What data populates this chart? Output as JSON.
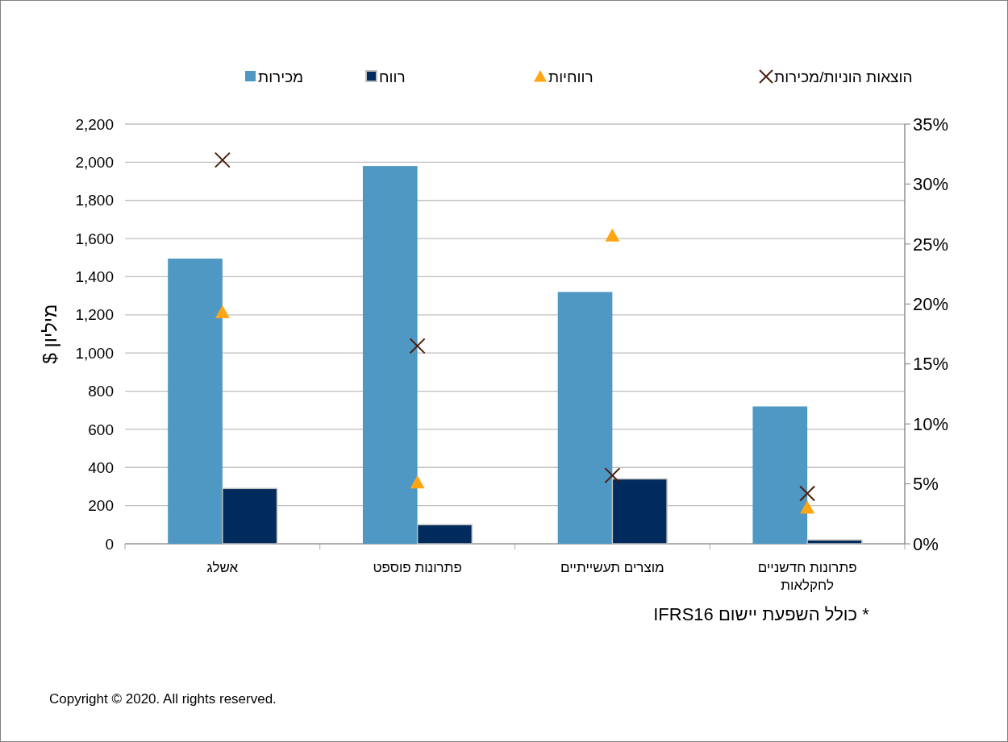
{
  "chart_data": {
    "type": "bar",
    "ylabel": "מיליון $",
    "categories": [
      "אשלג",
      "פתרונות פוספט",
      "מוצרים תעשייתיים",
      "פתרונות חדשניים לחקלאות"
    ],
    "series": [
      {
        "name": "מכירות",
        "color": "#4f98c3",
        "values": [
          1495,
          1980,
          1320,
          720
        ]
      },
      {
        "name": "רווח",
        "color": "#002b5c",
        "values": [
          290,
          100,
          340,
          20
        ]
      },
      {
        "name": "רווחיות",
        "type": "scatter",
        "marker": "triangle",
        "axis": "y2",
        "color": "#ffa514",
        "values": [
          19.3,
          5.1,
          25.7,
          3.0
        ]
      },
      {
        "name": "הוצאות הוניות/מכירות",
        "type": "scatter",
        "marker": "cross",
        "axis": "y2",
        "color": "#4a1e0e",
        "values": [
          32.0,
          16.5,
          5.7,
          4.2
        ]
      }
    ],
    "ylim": [
      0,
      2200
    ],
    "yticks": [
      {
        "value": 0,
        "label": "0"
      },
      {
        "value": 200,
        "label": "200"
      },
      {
        "value": 400,
        "label": "400"
      },
      {
        "value": 600,
        "label": "600"
      },
      {
        "value": 800,
        "label": "800"
      },
      {
        "value": 1000,
        "label": "1,000"
      },
      {
        "value": 1200,
        "label": "1,200"
      },
      {
        "value": 1400,
        "label": "1,400"
      },
      {
        "value": 1600,
        "label": "1,600"
      },
      {
        "value": 1800,
        "label": "1,800"
      },
      {
        "value": 2000,
        "label": "2,000"
      },
      {
        "value": 2200,
        "label": "2,200"
      }
    ],
    "y2lim": [
      0,
      35
    ],
    "y2ticks": [
      {
        "value": 0,
        "label": "0%"
      },
      {
        "value": 5,
        "label": "5%"
      },
      {
        "value": 10,
        "label": "10%"
      },
      {
        "value": 15,
        "label": "15%"
      },
      {
        "value": 20,
        "label": "20%"
      },
      {
        "value": 25,
        "label": "25%"
      },
      {
        "value": 30,
        "label": "30%"
      },
      {
        "value": 35,
        "label": "35%"
      }
    ],
    "grid": "y",
    "legend": "top",
    "annotations": [
      "* כולל השפעת יישום IFRS16",
      "Copyright © 2020. All rights reserved."
    ]
  }
}
